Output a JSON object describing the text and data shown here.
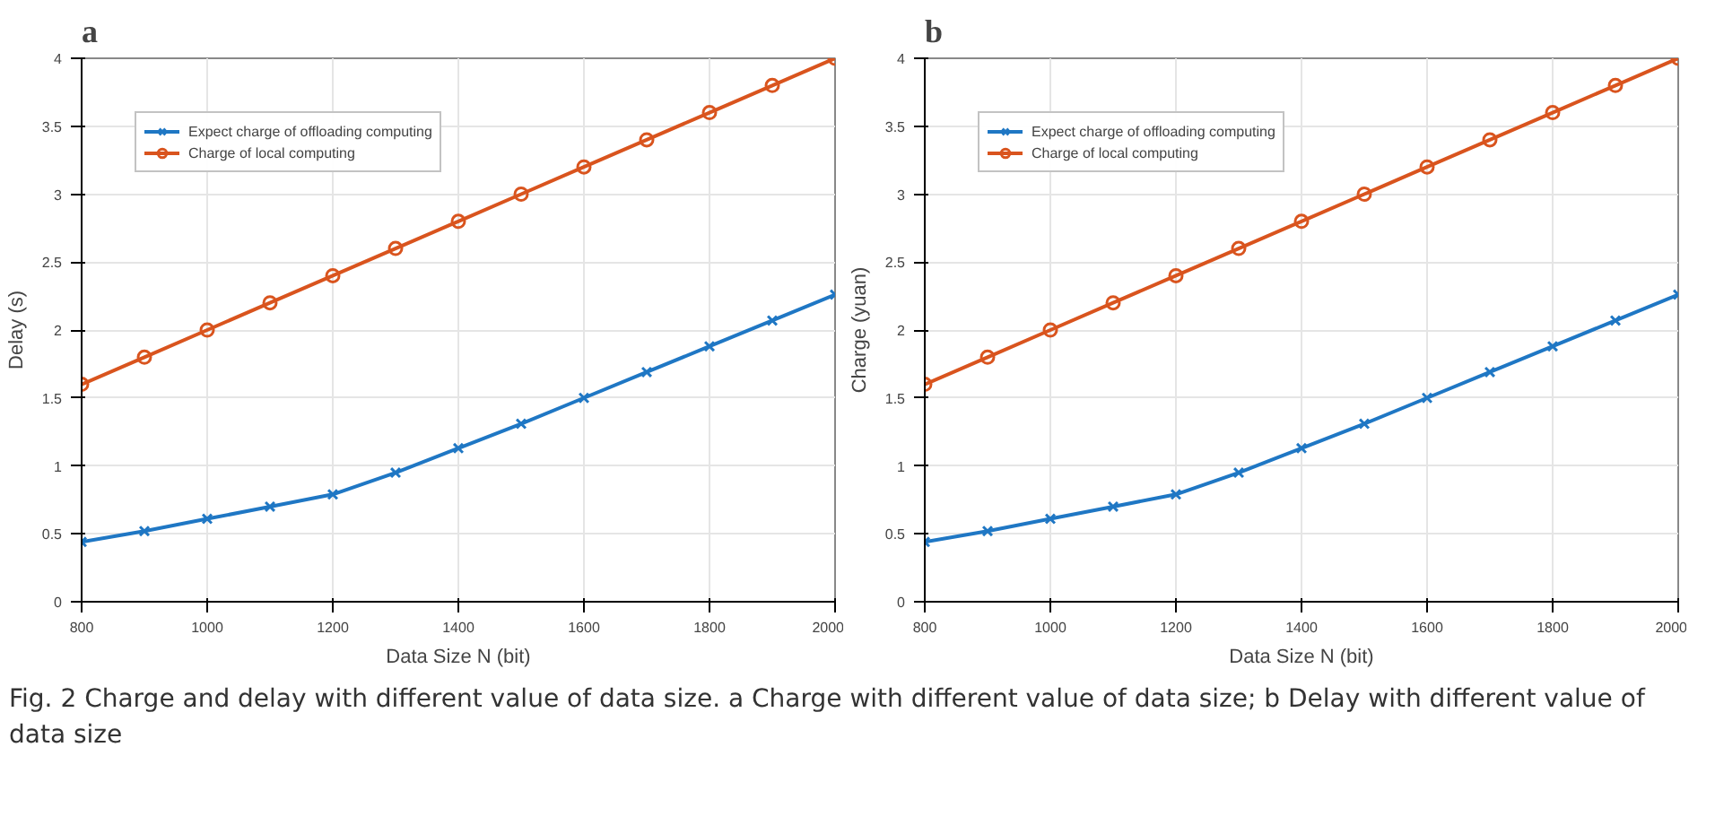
{
  "chart_data": [
    {
      "type": "line",
      "title": "a",
      "xlabel": "Data Size N (bit)",
      "ylabel": "Delay (s)",
      "x": [
        800,
        900,
        1000,
        1100,
        1200,
        1300,
        1400,
        1500,
        1600,
        1700,
        1800,
        1900,
        2000
      ],
      "series": [
        {
          "name": "Expect charge of offloading computing",
          "color": "#1f77c4",
          "marker": "cross",
          "values": [
            0.44,
            0.52,
            0.61,
            0.7,
            0.79,
            0.95,
            1.13,
            1.31,
            1.5,
            1.69,
            1.88,
            2.07,
            2.26
          ]
        },
        {
          "name": "Charge of local computing",
          "color": "#d9541e",
          "marker": "circle",
          "values": [
            1.6,
            1.8,
            2.0,
            2.2,
            2.4,
            2.6,
            2.8,
            3.0,
            3.2,
            3.4,
            3.6,
            3.8,
            4.0
          ]
        }
      ],
      "xlim": [
        800,
        2000
      ],
      "xticks": [
        800,
        1000,
        1200,
        1400,
        1600,
        1800,
        2000
      ],
      "ylim": [
        0,
        4
      ],
      "yticks": [
        0,
        0.5,
        1,
        1.5,
        2,
        2.5,
        3,
        3.5,
        4
      ],
      "grid": true,
      "legend": "top left",
      "line_style": "solid",
      "annotations": [
        "Fig. 2  Charge and delay with different value of data size. a Charge with different value of data size; b Delay with different value of data size"
      ]
    },
    {
      "type": "line",
      "title": "b",
      "xlabel": "Data Size N (bit)",
      "ylabel": "Charge (yuan)",
      "x": [
        800,
        900,
        1000,
        1100,
        1200,
        1300,
        1400,
        1500,
        1600,
        1700,
        1800,
        1900,
        2000
      ],
      "series": [
        {
          "name": "Expect charge of offloading computing",
          "color": "#1f77c4",
          "marker": "cross",
          "values": [
            0.44,
            0.52,
            0.61,
            0.7,
            0.79,
            0.95,
            1.13,
            1.31,
            1.5,
            1.69,
            1.88,
            2.07,
            2.26
          ]
        },
        {
          "name": "Charge of local computing",
          "color": "#d9541e",
          "marker": "circle",
          "values": [
            1.6,
            1.8,
            2.0,
            2.2,
            2.4,
            2.6,
            2.8,
            3.0,
            3.2,
            3.4,
            3.6,
            3.8,
            4.0
          ]
        }
      ],
      "xlim": [
        800,
        2000
      ],
      "xticks": [
        800,
        1000,
        1200,
        1400,
        1600,
        1800,
        2000
      ],
      "ylim": [
        0,
        4
      ],
      "yticks": [
        0,
        0.5,
        1,
        1.5,
        2,
        2.5,
        3,
        3.5,
        4
      ],
      "grid": true,
      "legend": "top left",
      "line_style": "solid"
    }
  ]
}
